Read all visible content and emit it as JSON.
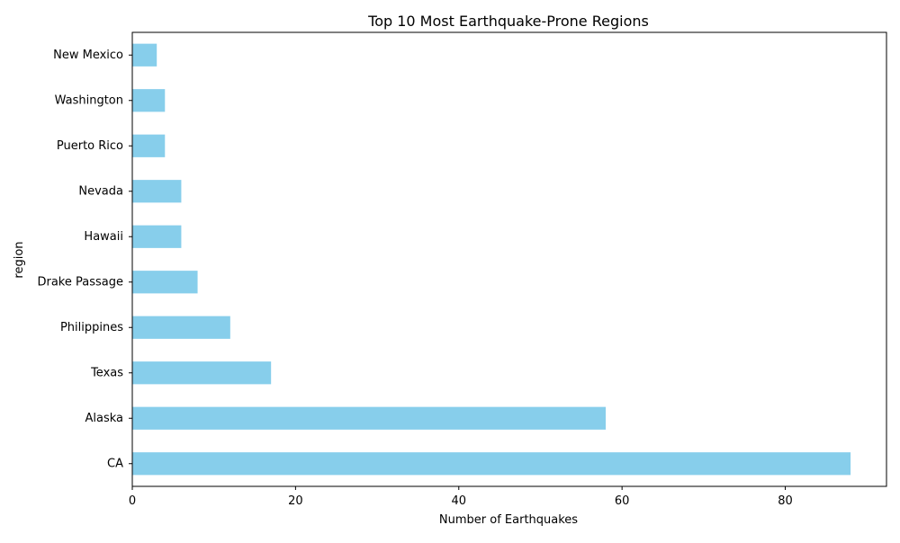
{
  "chart_data": {
    "type": "bar",
    "orientation": "horizontal",
    "title": "Top 10 Most Earthquake-Prone Regions",
    "xlabel": "Number of Earthquakes",
    "ylabel": "region",
    "categories": [
      "CA",
      "Alaska",
      "Texas",
      "Philippines",
      "Drake Passage",
      "Hawaii",
      "Nevada",
      "Puerto Rico",
      "Washington",
      "New Mexico"
    ],
    "values": [
      88,
      58,
      17,
      12,
      8,
      6,
      6,
      4,
      4,
      3
    ],
    "xlim": [
      0,
      92.4
    ],
    "xticks": [
      0,
      20,
      40,
      60,
      80
    ],
    "grid": false,
    "legend": "none",
    "bar_color": "#87CEEB"
  }
}
